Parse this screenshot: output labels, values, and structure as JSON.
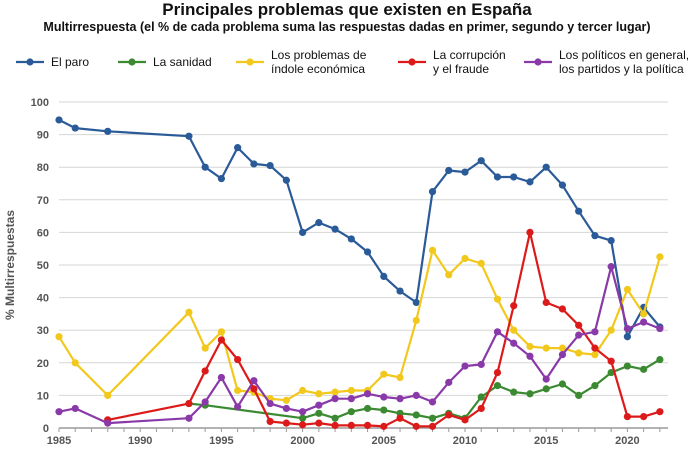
{
  "chart_data": {
    "type": "line",
    "title": "Principales problemas que existen en España",
    "subtitle": "Multirrespuesta (el % de cada problema suma las respuestas dadas en primer, segundo y tercer lugar)",
    "ylabel": "% Multirrespuestas",
    "xlabel": "",
    "xlim": [
      1985,
      2022.5
    ],
    "ylim": [
      0,
      100
    ],
    "x_ticks": [
      1985,
      1990,
      1995,
      2000,
      2005,
      2010,
      2015,
      2020
    ],
    "y_ticks": [
      0,
      10,
      20,
      30,
      40,
      50,
      60,
      70,
      80,
      90,
      100
    ],
    "grid": true,
    "legend_position": "top",
    "series": [
      {
        "name": "El paro",
        "color": "#2a5b98",
        "points": [
          [
            1985,
            94.5
          ],
          [
            1986,
            92
          ],
          [
            1988,
            91
          ],
          [
            1993,
            89.5
          ],
          [
            1994,
            80
          ],
          [
            1995,
            76.5
          ],
          [
            1996,
            86
          ],
          [
            1997,
            81
          ],
          [
            1998,
            80.5
          ],
          [
            1999,
            76
          ],
          [
            2000,
            60
          ],
          [
            2001,
            63
          ],
          [
            2002,
            61
          ],
          [
            2003,
            58
          ],
          [
            2004,
            54
          ],
          [
            2005,
            46.5
          ],
          [
            2006,
            42
          ],
          [
            2007,
            38.5
          ],
          [
            2008,
            72.5
          ],
          [
            2009,
            79
          ],
          [
            2010,
            78.5
          ],
          [
            2011,
            82
          ],
          [
            2012,
            77
          ],
          [
            2013,
            77
          ],
          [
            2014,
            75.5
          ],
          [
            2015,
            80
          ],
          [
            2016,
            74.5
          ],
          [
            2017,
            66.5
          ],
          [
            2018,
            59
          ],
          [
            2019,
            57.5
          ],
          [
            2020,
            28
          ],
          [
            2021,
            37
          ],
          [
            2022,
            31
          ]
        ]
      },
      {
        "name": "La sanidad",
        "color": "#3b8a32",
        "points": [
          [
            1993,
            7.5
          ],
          [
            1994,
            7
          ],
          [
            2000,
            3
          ],
          [
            2001,
            4.5
          ],
          [
            2002,
            3
          ],
          [
            2003,
            5
          ],
          [
            2004,
            6
          ],
          [
            2005,
            5.5
          ],
          [
            2006,
            4.5
          ],
          [
            2007,
            4
          ],
          [
            2008,
            3
          ],
          [
            2009,
            4.5
          ],
          [
            2010,
            3
          ],
          [
            2011,
            9.5
          ],
          [
            2012,
            13
          ],
          [
            2013,
            11
          ],
          [
            2014,
            10.5
          ],
          [
            2015,
            12
          ],
          [
            2016,
            13.5
          ],
          [
            2017,
            10
          ],
          [
            2018,
            13
          ],
          [
            2019,
            17
          ],
          [
            2020,
            19
          ],
          [
            2021,
            18
          ],
          [
            2022,
            21
          ]
        ]
      },
      {
        "name": "Los problemas de índole económica",
        "label_lines": [
          "Los problemas de",
          "índole económica"
        ],
        "color": "#f2c81c",
        "points": [
          [
            1985,
            28
          ],
          [
            1986,
            20
          ],
          [
            1988,
            10
          ],
          [
            1993,
            35.5
          ],
          [
            1994,
            24.5
          ],
          [
            1995,
            29.5
          ],
          [
            1996,
            11.5
          ],
          [
            1997,
            11
          ],
          [
            1998,
            9
          ],
          [
            1999,
            8.5
          ],
          [
            2000,
            11.5
          ],
          [
            2001,
            10.5
          ],
          [
            2002,
            11
          ],
          [
            2003,
            11.5
          ],
          [
            2004,
            11.5
          ],
          [
            2005,
            16.5
          ],
          [
            2006,
            15.5
          ],
          [
            2007,
            33
          ],
          [
            2008,
            54.5
          ],
          [
            2009,
            47
          ],
          [
            2010,
            52
          ],
          [
            2011,
            50.5
          ],
          [
            2012,
            39.5
          ],
          [
            2013,
            30
          ],
          [
            2014,
            25
          ],
          [
            2015,
            24.5
          ],
          [
            2016,
            24.5
          ],
          [
            2017,
            23
          ],
          [
            2018,
            22.5
          ],
          [
            2019,
            30
          ],
          [
            2020,
            42.5
          ],
          [
            2021,
            35
          ],
          [
            2022,
            52.5
          ]
        ]
      },
      {
        "name": "La corrupción y el fraude",
        "label_lines": [
          "La corrupción",
          "y el fraude"
        ],
        "color": "#dc1a1a",
        "points": [
          [
            1988,
            2.5
          ],
          [
            1993,
            7.5
          ],
          [
            1994,
            17.5
          ],
          [
            1995,
            27
          ],
          [
            1996,
            21
          ],
          [
            1997,
            12
          ],
          [
            1998,
            2
          ],
          [
            1999,
            1.5
          ],
          [
            2000,
            1
          ],
          [
            2001,
            1.5
          ],
          [
            2002,
            0.8
          ],
          [
            2003,
            0.8
          ],
          [
            2004,
            0.8
          ],
          [
            2005,
            0.5
          ],
          [
            2006,
            3
          ],
          [
            2007,
            0.5
          ],
          [
            2008,
            0.5
          ],
          [
            2009,
            4
          ],
          [
            2010,
            2.5
          ],
          [
            2011,
            6
          ],
          [
            2012,
            17
          ],
          [
            2013,
            37.5
          ],
          [
            2014,
            60
          ],
          [
            2015,
            38.5
          ],
          [
            2016,
            36.5
          ],
          [
            2017,
            31.5
          ],
          [
            2018,
            24.5
          ],
          [
            2019,
            20.5
          ],
          [
            2020,
            3.5
          ],
          [
            2021,
            3.5
          ],
          [
            2022,
            5
          ]
        ]
      },
      {
        "name": "Los políticos en general, los partidos y la política",
        "label_lines": [
          "Los políticos en general,",
          "los partidos y la política"
        ],
        "color": "#8a3aa8",
        "points": [
          [
            1985,
            5
          ],
          [
            1986,
            6
          ],
          [
            1988,
            1.5
          ],
          [
            1993,
            3
          ],
          [
            1994,
            8
          ],
          [
            1995,
            15.5
          ],
          [
            1996,
            6.5
          ],
          [
            1997,
            14.5
          ],
          [
            1998,
            7.5
          ],
          [
            1999,
            6
          ],
          [
            2000,
            5
          ],
          [
            2001,
            7
          ],
          [
            2002,
            9
          ],
          [
            2003,
            9
          ],
          [
            2004,
            10.5
          ],
          [
            2005,
            9.5
          ],
          [
            2006,
            9
          ],
          [
            2007,
            10
          ],
          [
            2008,
            8
          ],
          [
            2009,
            14
          ],
          [
            2010,
            19
          ],
          [
            2011,
            19.5
          ],
          [
            2012,
            29.5
          ],
          [
            2013,
            26
          ],
          [
            2014,
            22
          ],
          [
            2015,
            15
          ],
          [
            2016,
            22.5
          ],
          [
            2017,
            28.5
          ],
          [
            2018,
            29.5
          ],
          [
            2019,
            49.5
          ],
          [
            2020,
            30.5
          ],
          [
            2021,
            32.5
          ],
          [
            2022,
            30.5
          ]
        ]
      }
    ]
  }
}
